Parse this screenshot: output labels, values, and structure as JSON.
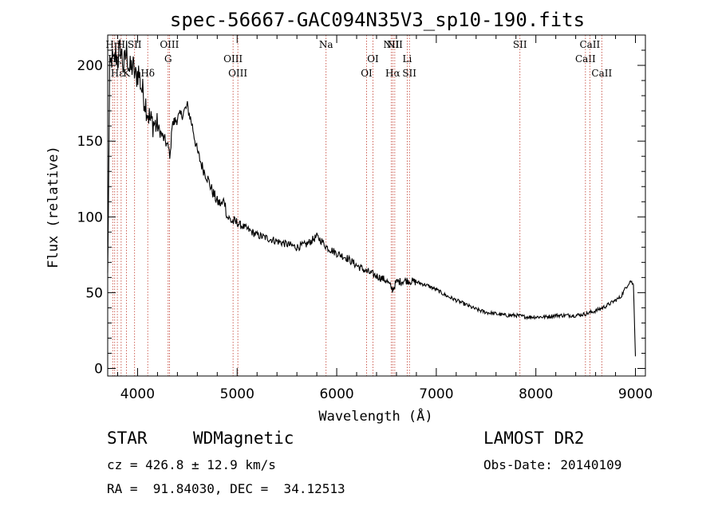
{
  "chart_data": {
    "type": "line",
    "title": "spec-56667-GAC094N35V3_sp10-190.fits",
    "xlabel": "Wavelength (Å)",
    "ylabel": "Flux (relative)",
    "xlim": [
      3700,
      9100
    ],
    "ylim": [
      -5,
      220
    ],
    "x_ticks": [
      4000,
      5000,
      6000,
      7000,
      8000,
      9000
    ],
    "y_ticks": [
      0,
      50,
      100,
      150,
      200
    ],
    "grid": false,
    "series": [
      {
        "color": "#000000",
        "x": [
          3700,
          3720,
          3740,
          3760,
          3780,
          3800,
          3830,
          3860,
          3890,
          3920,
          3950,
          3980,
          4010,
          4040,
          4070,
          4100,
          4130,
          4160,
          4190,
          4220,
          4250,
          4280,
          4310,
          4330,
          4340,
          4360,
          4400,
          4450,
          4500,
          4550,
          4600,
          4650,
          4700,
          4750,
          4800,
          4850,
          4870,
          4900,
          4950,
          5000,
          5050,
          5100,
          5150,
          5200,
          5300,
          5400,
          5500,
          5600,
          5700,
          5800,
          5850,
          5900,
          6000,
          6100,
          6200,
          6300,
          6400,
          6500,
          6560,
          6600,
          6700,
          6800,
          6900,
          7000,
          7100,
          7200,
          7300,
          7400,
          7500,
          7600,
          7700,
          7800,
          7900,
          8000,
          8100,
          8200,
          8300,
          8400,
          8500,
          8600,
          8700,
          8800,
          8850,
          8900,
          8950,
          8980,
          9000
        ],
        "y": [
          60,
          195,
          205,
          200,
          208,
          203,
          212,
          198,
          210,
          196,
          200,
          192,
          196,
          185,
          178,
          170,
          163,
          162,
          160,
          157,
          153,
          150,
          145,
          140,
          158,
          162,
          165,
          168,
          173,
          160,
          143,
          133,
          126,
          117,
          110,
          108,
          112,
          100,
          97,
          96,
          94,
          92,
          90,
          88,
          86,
          84,
          82,
          80,
          82,
          87,
          84,
          80,
          76,
          73,
          68,
          64,
          61,
          58,
          52,
          57,
          58,
          57,
          55,
          52,
          48,
          45,
          42,
          39,
          37,
          36,
          35,
          35,
          34,
          34,
          34,
          35,
          35,
          35,
          36,
          38,
          41,
          45,
          47,
          53,
          58,
          55,
          8
        ]
      }
    ],
    "spectral_lines": [
      {
        "label": "Hη",
        "x": 3750,
        "row": 0
      },
      {
        "label": "Hζ",
        "x": 3770,
        "row": 1
      },
      {
        "label": "Hε",
        "x": 3797,
        "row": 2
      },
      {
        "label": "H",
        "x": 3835,
        "row": 0
      },
      {
        "label": "K",
        "x": 3889,
        "row": 2
      },
      {
        "label": "SII",
        "x": 3970,
        "row": 0
      },
      {
        "label": "Hδ",
        "x": 4102,
        "row": 2
      },
      {
        "label": "OIII",
        "x": 4320,
        "row": 0
      },
      {
        "label": "G",
        "x": 4307,
        "row": 1
      },
      {
        "label": "OIII",
        "x": 4959,
        "row": 1
      },
      {
        "label": "OIII",
        "x": 5007,
        "row": 2
      },
      {
        "label": "Na",
        "x": 5893,
        "row": 0
      },
      {
        "label": "OI",
        "x": 6300,
        "row": 2
      },
      {
        "label": "OI",
        "x": 6364,
        "row": 1
      },
      {
        "label": "NII",
        "x": 6548,
        "row": 0
      },
      {
        "label": "Hα",
        "x": 6563,
        "row": 2
      },
      {
        "label": "NII",
        "x": 6583,
        "row": 0
      },
      {
        "label": "Li",
        "x": 6708,
        "row": 1
      },
      {
        "label": "SII",
        "x": 6730,
        "row": 2
      },
      {
        "label": "SII",
        "x": 7840,
        "row": 0
      },
      {
        "label": "CaII",
        "x": 8498,
        "row": 1
      },
      {
        "label": "CaII",
        "x": 8542,
        "row": 0
      },
      {
        "label": "CaII",
        "x": 8662,
        "row": 2
      }
    ]
  },
  "info": {
    "class": "STAR",
    "subclass": "WDMagnetic",
    "survey": "LAMOST DR2",
    "redshift": "cz = 426.8 ± 12.9 km/s",
    "obs_date": "Obs-Date: 20140109",
    "coords": "RA =  91.84030, DEC =  34.12513"
  }
}
